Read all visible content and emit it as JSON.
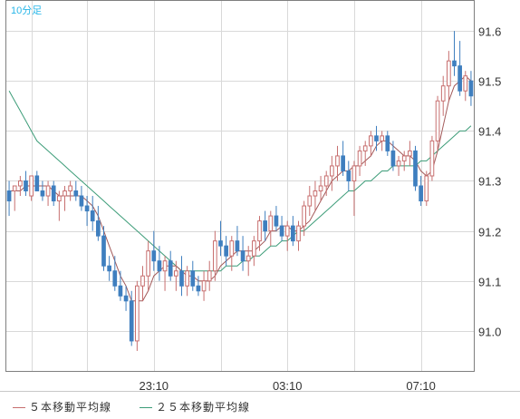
{
  "chart_data": {
    "type": "candlestick",
    "interval_label": "10分足",
    "ylim": [
      90.92,
      91.66
    ],
    "y_ticks": [
      "91.0",
      "91.1",
      "91.2",
      "91.3",
      "91.4",
      "91.5",
      "91.6"
    ],
    "y_tick_values": [
      91.0,
      91.1,
      91.2,
      91.3,
      91.4,
      91.5,
      91.6
    ],
    "x_ticks": [
      "23:10",
      "03:10",
      "07:10"
    ],
    "x_tick_index": [
      26,
      50,
      74
    ],
    "grid": true,
    "up_color": "#c76f6f",
    "down_color": "#3f7fbf",
    "ma5_color": "#a35a5a",
    "ma25_color": "#3c9c78",
    "candles": [
      [
        91.28,
        91.3,
        91.23,
        91.26
      ],
      [
        91.28,
        91.29,
        91.24,
        91.29
      ],
      [
        91.29,
        91.31,
        91.27,
        91.3
      ],
      [
        91.3,
        91.32,
        91.27,
        91.28
      ],
      [
        91.27,
        91.31,
        91.26,
        91.31
      ],
      [
        91.31,
        91.32,
        91.28,
        91.28
      ],
      [
        91.28,
        91.3,
        91.26,
        91.27
      ],
      [
        91.27,
        91.3,
        91.25,
        91.29
      ],
      [
        91.29,
        91.3,
        91.25,
        91.26
      ],
      [
        91.26,
        91.28,
        91.22,
        91.27
      ],
      [
        91.27,
        91.29,
        91.24,
        91.28
      ],
      [
        91.28,
        91.3,
        91.26,
        91.29
      ],
      [
        91.28,
        91.3,
        91.26,
        91.27
      ],
      [
        91.27,
        91.29,
        91.24,
        91.25
      ],
      [
        91.25,
        91.27,
        91.21,
        91.24
      ],
      [
        91.24,
        91.27,
        91.2,
        91.22
      ],
      [
        91.22,
        91.25,
        91.18,
        91.19
      ],
      [
        91.19,
        91.21,
        91.12,
        91.13
      ],
      [
        91.13,
        91.15,
        91.1,
        91.12
      ],
      [
        91.12,
        91.15,
        91.08,
        91.09
      ],
      [
        91.09,
        91.12,
        91.06,
        91.07
      ],
      [
        91.07,
        91.09,
        91.04,
        91.06
      ],
      [
        91.06,
        91.08,
        90.97,
        90.98
      ],
      [
        90.98,
        91.1,
        90.96,
        91.09
      ],
      [
        91.09,
        91.13,
        91.06,
        91.11
      ],
      [
        91.11,
        91.18,
        91.08,
        91.16
      ],
      [
        91.16,
        91.2,
        91.12,
        91.14
      ],
      [
        91.14,
        91.17,
        91.1,
        91.12
      ],
      [
        91.12,
        91.15,
        91.08,
        91.14
      ],
      [
        91.14,
        91.16,
        91.1,
        91.11
      ],
      [
        91.11,
        91.14,
        91.08,
        91.12
      ],
      [
        91.12,
        91.15,
        91.07,
        91.09
      ],
      [
        91.09,
        91.13,
        91.07,
        91.12
      ],
      [
        91.12,
        91.14,
        91.08,
        91.09
      ],
      [
        91.09,
        91.11,
        91.07,
        91.08
      ],
      [
        91.08,
        91.12,
        91.06,
        91.1
      ],
      [
        91.1,
        91.14,
        91.08,
        91.12
      ],
      [
        91.12,
        91.2,
        91.1,
        91.18
      ],
      [
        91.18,
        91.22,
        91.15,
        91.17
      ],
      [
        91.17,
        91.19,
        91.13,
        91.15
      ],
      [
        91.15,
        91.19,
        91.12,
        91.18
      ],
      [
        91.18,
        91.21,
        91.15,
        91.16
      ],
      [
        91.16,
        91.19,
        91.12,
        91.14
      ],
      [
        91.14,
        91.17,
        91.11,
        91.15
      ],
      [
        91.15,
        91.19,
        91.13,
        91.18
      ],
      [
        91.18,
        91.23,
        91.16,
        91.22
      ],
      [
        91.22,
        91.24,
        91.18,
        91.2
      ],
      [
        91.2,
        91.24,
        91.17,
        91.23
      ],
      [
        91.23,
        91.25,
        91.2,
        91.21
      ],
      [
        91.21,
        91.23,
        91.18,
        91.19
      ],
      [
        91.19,
        91.22,
        91.16,
        91.21
      ],
      [
        91.21,
        91.23,
        91.17,
        91.18
      ],
      [
        91.18,
        91.22,
        91.16,
        91.21
      ],
      [
        91.21,
        91.26,
        91.19,
        91.25
      ],
      [
        91.25,
        91.29,
        91.23,
        91.27
      ],
      [
        91.27,
        91.3,
        91.24,
        91.28
      ],
      [
        91.28,
        91.31,
        91.26,
        91.29
      ],
      [
        91.29,
        91.32,
        91.27,
        91.31
      ],
      [
        91.31,
        91.35,
        91.28,
        91.33
      ],
      [
        91.33,
        91.37,
        91.3,
        91.35
      ],
      [
        91.35,
        91.38,
        91.31,
        91.32
      ],
      [
        91.32,
        91.34,
        91.28,
        91.3
      ],
      [
        91.3,
        91.34,
        91.23,
        91.33
      ],
      [
        91.33,
        91.37,
        91.31,
        91.36
      ],
      [
        91.36,
        91.38,
        91.33,
        91.37
      ],
      [
        91.37,
        91.4,
        91.35,
        91.39
      ],
      [
        91.39,
        91.41,
        91.36,
        91.38
      ],
      [
        91.38,
        91.4,
        91.36,
        91.39
      ],
      [
        91.39,
        91.4,
        91.35,
        91.36
      ],
      [
        91.36,
        91.38,
        91.32,
        91.33
      ],
      [
        91.33,
        91.35,
        91.31,
        91.34
      ],
      [
        91.34,
        91.36,
        91.32,
        91.35
      ],
      [
        91.35,
        91.38,
        91.33,
        91.36
      ],
      [
        91.36,
        91.37,
        91.28,
        91.29
      ],
      [
        91.29,
        91.31,
        91.25,
        91.26
      ],
      [
        91.26,
        91.32,
        91.25,
        91.31
      ],
      [
        91.31,
        91.39,
        91.3,
        91.38
      ],
      [
        91.38,
        91.47,
        91.36,
        91.46
      ],
      [
        91.46,
        91.51,
        91.43,
        91.49
      ],
      [
        91.49,
        91.56,
        91.46,
        91.54
      ],
      [
        91.54,
        91.6,
        91.51,
        91.53
      ],
      [
        91.53,
        91.58,
        91.47,
        91.48
      ],
      [
        91.48,
        91.52,
        91.46,
        91.51
      ],
      [
        91.5,
        91.52,
        91.45,
        91.47
      ]
    ],
    "ma5": [
      91.28,
      91.28,
      91.28,
      91.29,
      91.29,
      91.29,
      91.29,
      91.29,
      91.28,
      91.27,
      91.27,
      91.27,
      91.27,
      91.27,
      91.26,
      91.25,
      91.23,
      91.2,
      91.17,
      91.14,
      91.11,
      91.09,
      91.06,
      91.06,
      91.06,
      91.08,
      91.11,
      91.12,
      91.13,
      91.13,
      91.13,
      91.12,
      91.11,
      91.11,
      91.1,
      91.1,
      91.1,
      91.11,
      91.13,
      91.14,
      91.15,
      91.16,
      91.16,
      91.16,
      91.16,
      91.17,
      91.18,
      91.2,
      91.2,
      91.21,
      91.21,
      91.2,
      91.2,
      91.21,
      91.22,
      91.24,
      91.26,
      91.28,
      91.3,
      91.31,
      91.32,
      91.32,
      91.33,
      91.33,
      91.34,
      91.35,
      91.37,
      91.38,
      91.38,
      91.37,
      91.36,
      91.35,
      91.35,
      91.34,
      91.32,
      91.31,
      91.32,
      91.36,
      91.41,
      91.46,
      91.49,
      91.5,
      91.51,
      91.5
    ],
    "ma25": [
      91.48,
      91.46,
      91.44,
      91.42,
      91.4,
      91.38,
      91.37,
      91.36,
      91.35,
      91.34,
      91.33,
      91.32,
      91.31,
      91.3,
      91.29,
      91.28,
      91.27,
      91.26,
      91.25,
      91.24,
      91.23,
      91.22,
      91.21,
      91.2,
      91.19,
      91.18,
      91.17,
      91.16,
      91.15,
      91.14,
      91.13,
      91.12,
      91.12,
      91.12,
      91.12,
      91.12,
      91.12,
      91.12,
      91.12,
      91.13,
      91.13,
      91.13,
      91.14,
      91.14,
      91.15,
      91.15,
      91.16,
      91.17,
      91.17,
      91.18,
      91.18,
      91.19,
      91.2,
      91.2,
      91.21,
      91.22,
      91.23,
      91.24,
      91.25,
      91.26,
      91.27,
      91.28,
      91.28,
      91.29,
      91.3,
      91.3,
      91.31,
      91.32,
      91.32,
      91.33,
      91.33,
      91.33,
      91.33,
      91.33,
      91.34,
      91.34,
      91.35,
      91.36,
      91.37,
      91.38,
      91.39,
      91.4,
      91.4,
      91.41
    ]
  },
  "legend": {
    "ma5_label": "５本移動平均線",
    "ma25_label": "２５本移動平均線"
  }
}
